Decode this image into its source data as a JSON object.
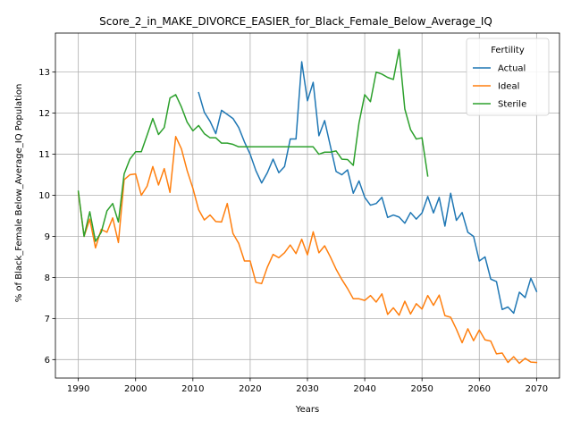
{
  "chart_data": {
    "type": "line",
    "title": "Score_2_in_MAKE_DIVORCE_EASIER_for_Black_Female_Below_Average_IQ",
    "xlabel": "Years",
    "ylabel": "% of Black_Female Below_Average_IQ Population",
    "xlim": [
      1986,
      2074
    ],
    "ylim": [
      5.55,
      13.95
    ],
    "xticks": [
      1990,
      2000,
      2010,
      2020,
      2030,
      2040,
      2050,
      2060,
      2070
    ],
    "yticks": [
      6,
      7,
      8,
      9,
      10,
      11,
      12,
      13
    ],
    "grid": true,
    "legend": {
      "title": "Fertility",
      "placement": "top-right"
    },
    "series": [
      {
        "name": "Actual",
        "color": "#1f77b4",
        "x": [
          2011,
          2012,
          2013,
          2014,
          2015,
          2016,
          2017,
          2018,
          2019,
          2020,
          2021,
          2022,
          2023,
          2024,
          2025,
          2026,
          2027,
          2028,
          2029,
          2030,
          2031,
          2032,
          2033,
          2034,
          2035,
          2036,
          2037,
          2038,
          2039,
          2040,
          2041,
          2042,
          2043,
          2044,
          2045,
          2046,
          2047,
          2048,
          2049,
          2050,
          2051,
          2052,
          2053,
          2054,
          2055,
          2056,
          2057,
          2058,
          2059,
          2060,
          2061,
          2062,
          2063,
          2064,
          2065,
          2066,
          2067,
          2068,
          2069,
          2070
        ],
        "values": [
          12.5,
          12.02,
          11.8,
          11.5,
          12.07,
          11.97,
          11.87,
          11.65,
          11.3,
          11.0,
          10.6,
          10.3,
          10.55,
          10.88,
          10.55,
          10.7,
          11.37,
          11.37,
          13.25,
          12.3,
          12.75,
          11.45,
          11.82,
          11.2,
          10.58,
          10.5,
          10.62,
          10.05,
          10.35,
          9.95,
          9.76,
          9.8,
          9.95,
          9.46,
          9.52,
          9.47,
          9.32,
          9.58,
          9.42,
          9.57,
          9.97,
          9.57,
          9.95,
          9.25,
          10.05,
          9.39,
          9.58,
          9.1,
          9.0,
          8.4,
          8.5,
          7.96,
          7.9,
          7.22,
          7.28,
          7.13,
          7.64,
          7.51,
          7.98,
          7.66
        ]
      },
      {
        "name": "Ideal",
        "color": "#ff7f0e",
        "x": [
          1990,
          1991,
          1992,
          1993,
          1994,
          1995,
          1996,
          1997,
          1998,
          1999,
          2000,
          2001,
          2002,
          2003,
          2004,
          2005,
          2006,
          2007,
          2008,
          2009,
          2010,
          2011,
          2012,
          2013,
          2014,
          2015,
          2016,
          2017,
          2018,
          2019,
          2020,
          2021,
          2022,
          2023,
          2024,
          2025,
          2026,
          2027,
          2028,
          2029,
          2030,
          2031,
          2032,
          2033,
          2034,
          2035,
          2036,
          2037,
          2038,
          2039,
          2040,
          2041,
          2042,
          2043,
          2044,
          2045,
          2046,
          2047,
          2048,
          2049,
          2050,
          2051,
          2052,
          2053,
          2054,
          2055,
          2056,
          2057,
          2058,
          2059,
          2060,
          2061,
          2062,
          2063,
          2064,
          2065,
          2066,
          2067,
          2068,
          2069,
          2070
        ],
        "values": [
          10.07,
          9.0,
          9.42,
          8.72,
          9.17,
          9.1,
          9.45,
          8.85,
          10.38,
          10.5,
          10.52,
          10.0,
          10.22,
          10.7,
          10.25,
          10.65,
          10.07,
          11.43,
          11.13,
          10.6,
          10.17,
          9.65,
          9.4,
          9.52,
          9.36,
          9.35,
          9.8,
          9.07,
          8.83,
          8.4,
          8.4,
          7.88,
          7.85,
          8.25,
          8.56,
          8.48,
          8.6,
          8.79,
          8.58,
          8.93,
          8.55,
          9.11,
          8.6,
          8.77,
          8.5,
          8.2,
          7.95,
          7.73,
          7.48,
          7.48,
          7.44,
          7.56,
          7.4,
          7.6,
          7.1,
          7.26,
          7.08,
          7.42,
          7.11,
          7.36,
          7.23,
          7.56,
          7.32,
          7.57,
          7.07,
          7.03,
          6.74,
          6.41,
          6.75,
          6.46,
          6.72,
          6.48,
          6.45,
          6.14,
          6.16,
          5.93,
          6.07,
          5.91,
          6.03,
          5.94,
          5.93
        ]
      },
      {
        "name": "Sterile",
        "color": "#2ca02c",
        "x": [
          1990,
          1991,
          1992,
          1993,
          1994,
          1995,
          1996,
          1997,
          1998,
          1999,
          2000,
          2001,
          2002,
          2003,
          2004,
          2005,
          2006,
          2007,
          2008,
          2009,
          2010,
          2011,
          2012,
          2013,
          2014,
          2015,
          2016,
          2017,
          2018,
          2019,
          2020,
          2021,
          2022,
          2023,
          2024,
          2025,
          2026,
          2027,
          2028,
          2029,
          2030,
          2031,
          2032,
          2033,
          2034,
          2035,
          2036,
          2037,
          2038,
          2039,
          2040,
          2041,
          2042,
          2043,
          2044,
          2045,
          2046,
          2047,
          2048,
          2049,
          2050,
          2051
        ],
        "values": [
          10.1,
          9.0,
          9.6,
          8.88,
          9.1,
          9.62,
          9.8,
          9.35,
          10.52,
          10.88,
          11.06,
          11.06,
          11.46,
          11.87,
          11.48,
          11.65,
          12.37,
          12.45,
          12.15,
          11.78,
          11.57,
          11.7,
          11.5,
          11.4,
          11.4,
          11.27,
          11.27,
          11.24,
          11.18,
          11.18,
          11.18,
          11.18,
          11.18,
          11.18,
          11.18,
          11.18,
          11.18,
          11.18,
          11.18,
          11.18,
          11.18,
          11.18,
          11.0,
          11.05,
          11.05,
          11.08,
          10.88,
          10.87,
          10.73,
          11.76,
          12.45,
          12.28,
          13.0,
          12.95,
          12.87,
          12.82,
          13.55,
          12.1,
          11.6,
          11.37,
          11.4,
          10.47
        ]
      }
    ]
  }
}
